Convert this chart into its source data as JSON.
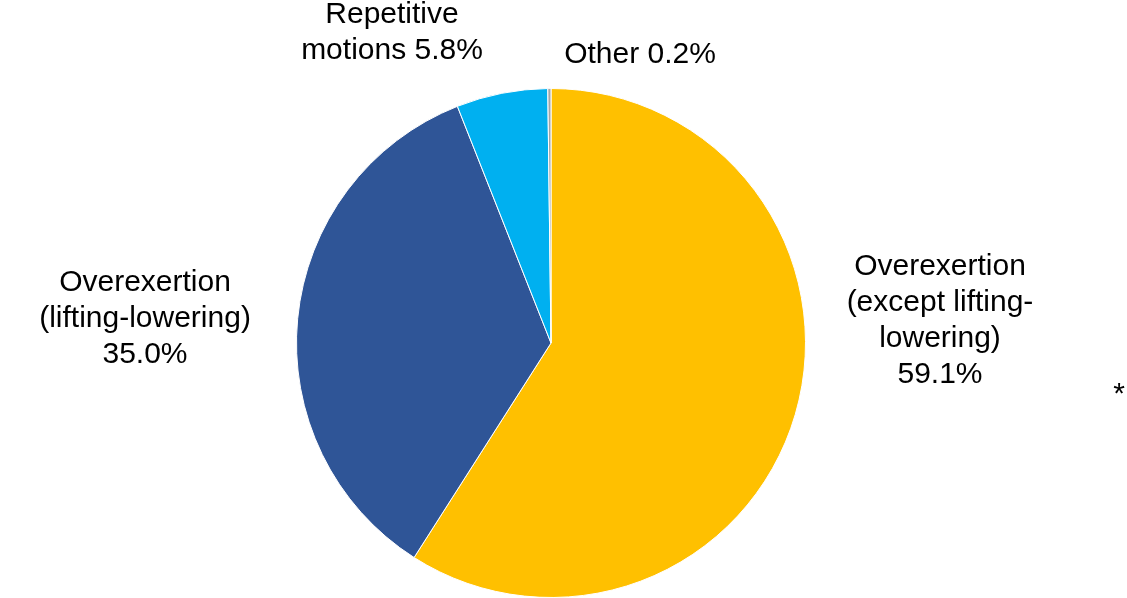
{
  "chart_data": {
    "type": "pie",
    "categories": [
      "Overexertion (except lifting-lowering)",
      "Overexertion (lifting-lowering)",
      "Repetitive motions",
      "Other"
    ],
    "values": [
      59.1,
      35.0,
      5.8,
      0.2
    ],
    "colors": [
      "#ffc000",
      "#2f5597",
      "#00b0f0",
      "#a5a5a5"
    ],
    "value_labels": [
      "59.1%",
      "35.0%",
      "5.8%",
      "0.2%"
    ],
    "annotations": [
      "*"
    ]
  }
}
